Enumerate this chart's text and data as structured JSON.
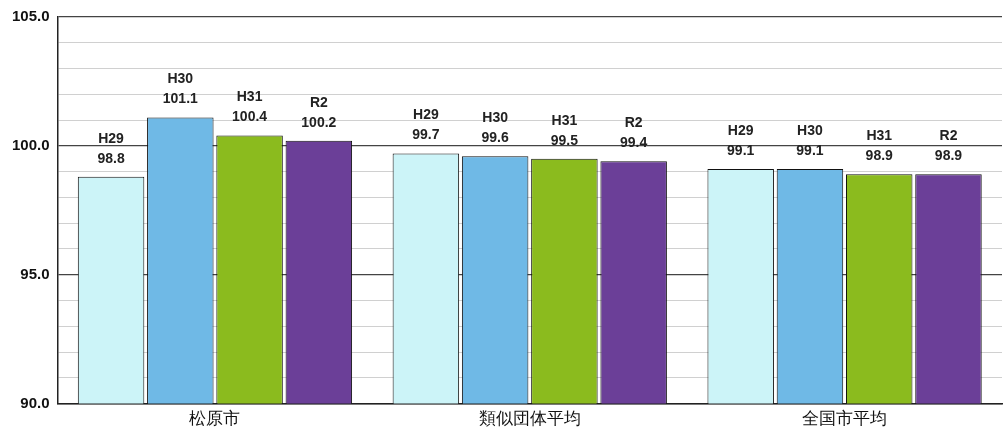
{
  "chart_data": {
    "type": "bar",
    "categories": [
      "松原市",
      "類似団体平均",
      "全国市平均"
    ],
    "series": [
      {
        "name": "H29",
        "color": "#ccf4f8",
        "values": [
          98.8,
          99.7,
          99.1
        ]
      },
      {
        "name": "H30",
        "color": "#6fb9e6",
        "values": [
          101.1,
          99.6,
          99.1
        ]
      },
      {
        "name": "H31",
        "color": "#8bbb1e",
        "values": [
          100.4,
          99.5,
          98.9
        ]
      },
      {
        "name": "R2",
        "color": "#6b3f98",
        "values": [
          100.2,
          99.4,
          98.9
        ]
      }
    ],
    "ylim": [
      90,
      105
    ],
    "yticks": [
      {
        "value": 90,
        "label": "90.0"
      },
      {
        "value": 91,
        "label": null
      },
      {
        "value": 92,
        "label": null
      },
      {
        "value": 93,
        "label": null
      },
      {
        "value": 94,
        "label": null
      },
      {
        "value": 95,
        "label": "95.0"
      },
      {
        "value": 96,
        "label": null
      },
      {
        "value": 97,
        "label": null
      },
      {
        "value": 98,
        "label": null
      },
      {
        "value": 99,
        "label": null
      },
      {
        "value": 100,
        "label": "100.0"
      },
      {
        "value": 101,
        "label": null
      },
      {
        "value": 102,
        "label": null
      },
      {
        "value": 103,
        "label": null
      },
      {
        "value": 104,
        "label": null
      },
      {
        "value": 105,
        "label": "105.0"
      }
    ],
    "grid": "y",
    "legend": false,
    "data_labels": true
  }
}
